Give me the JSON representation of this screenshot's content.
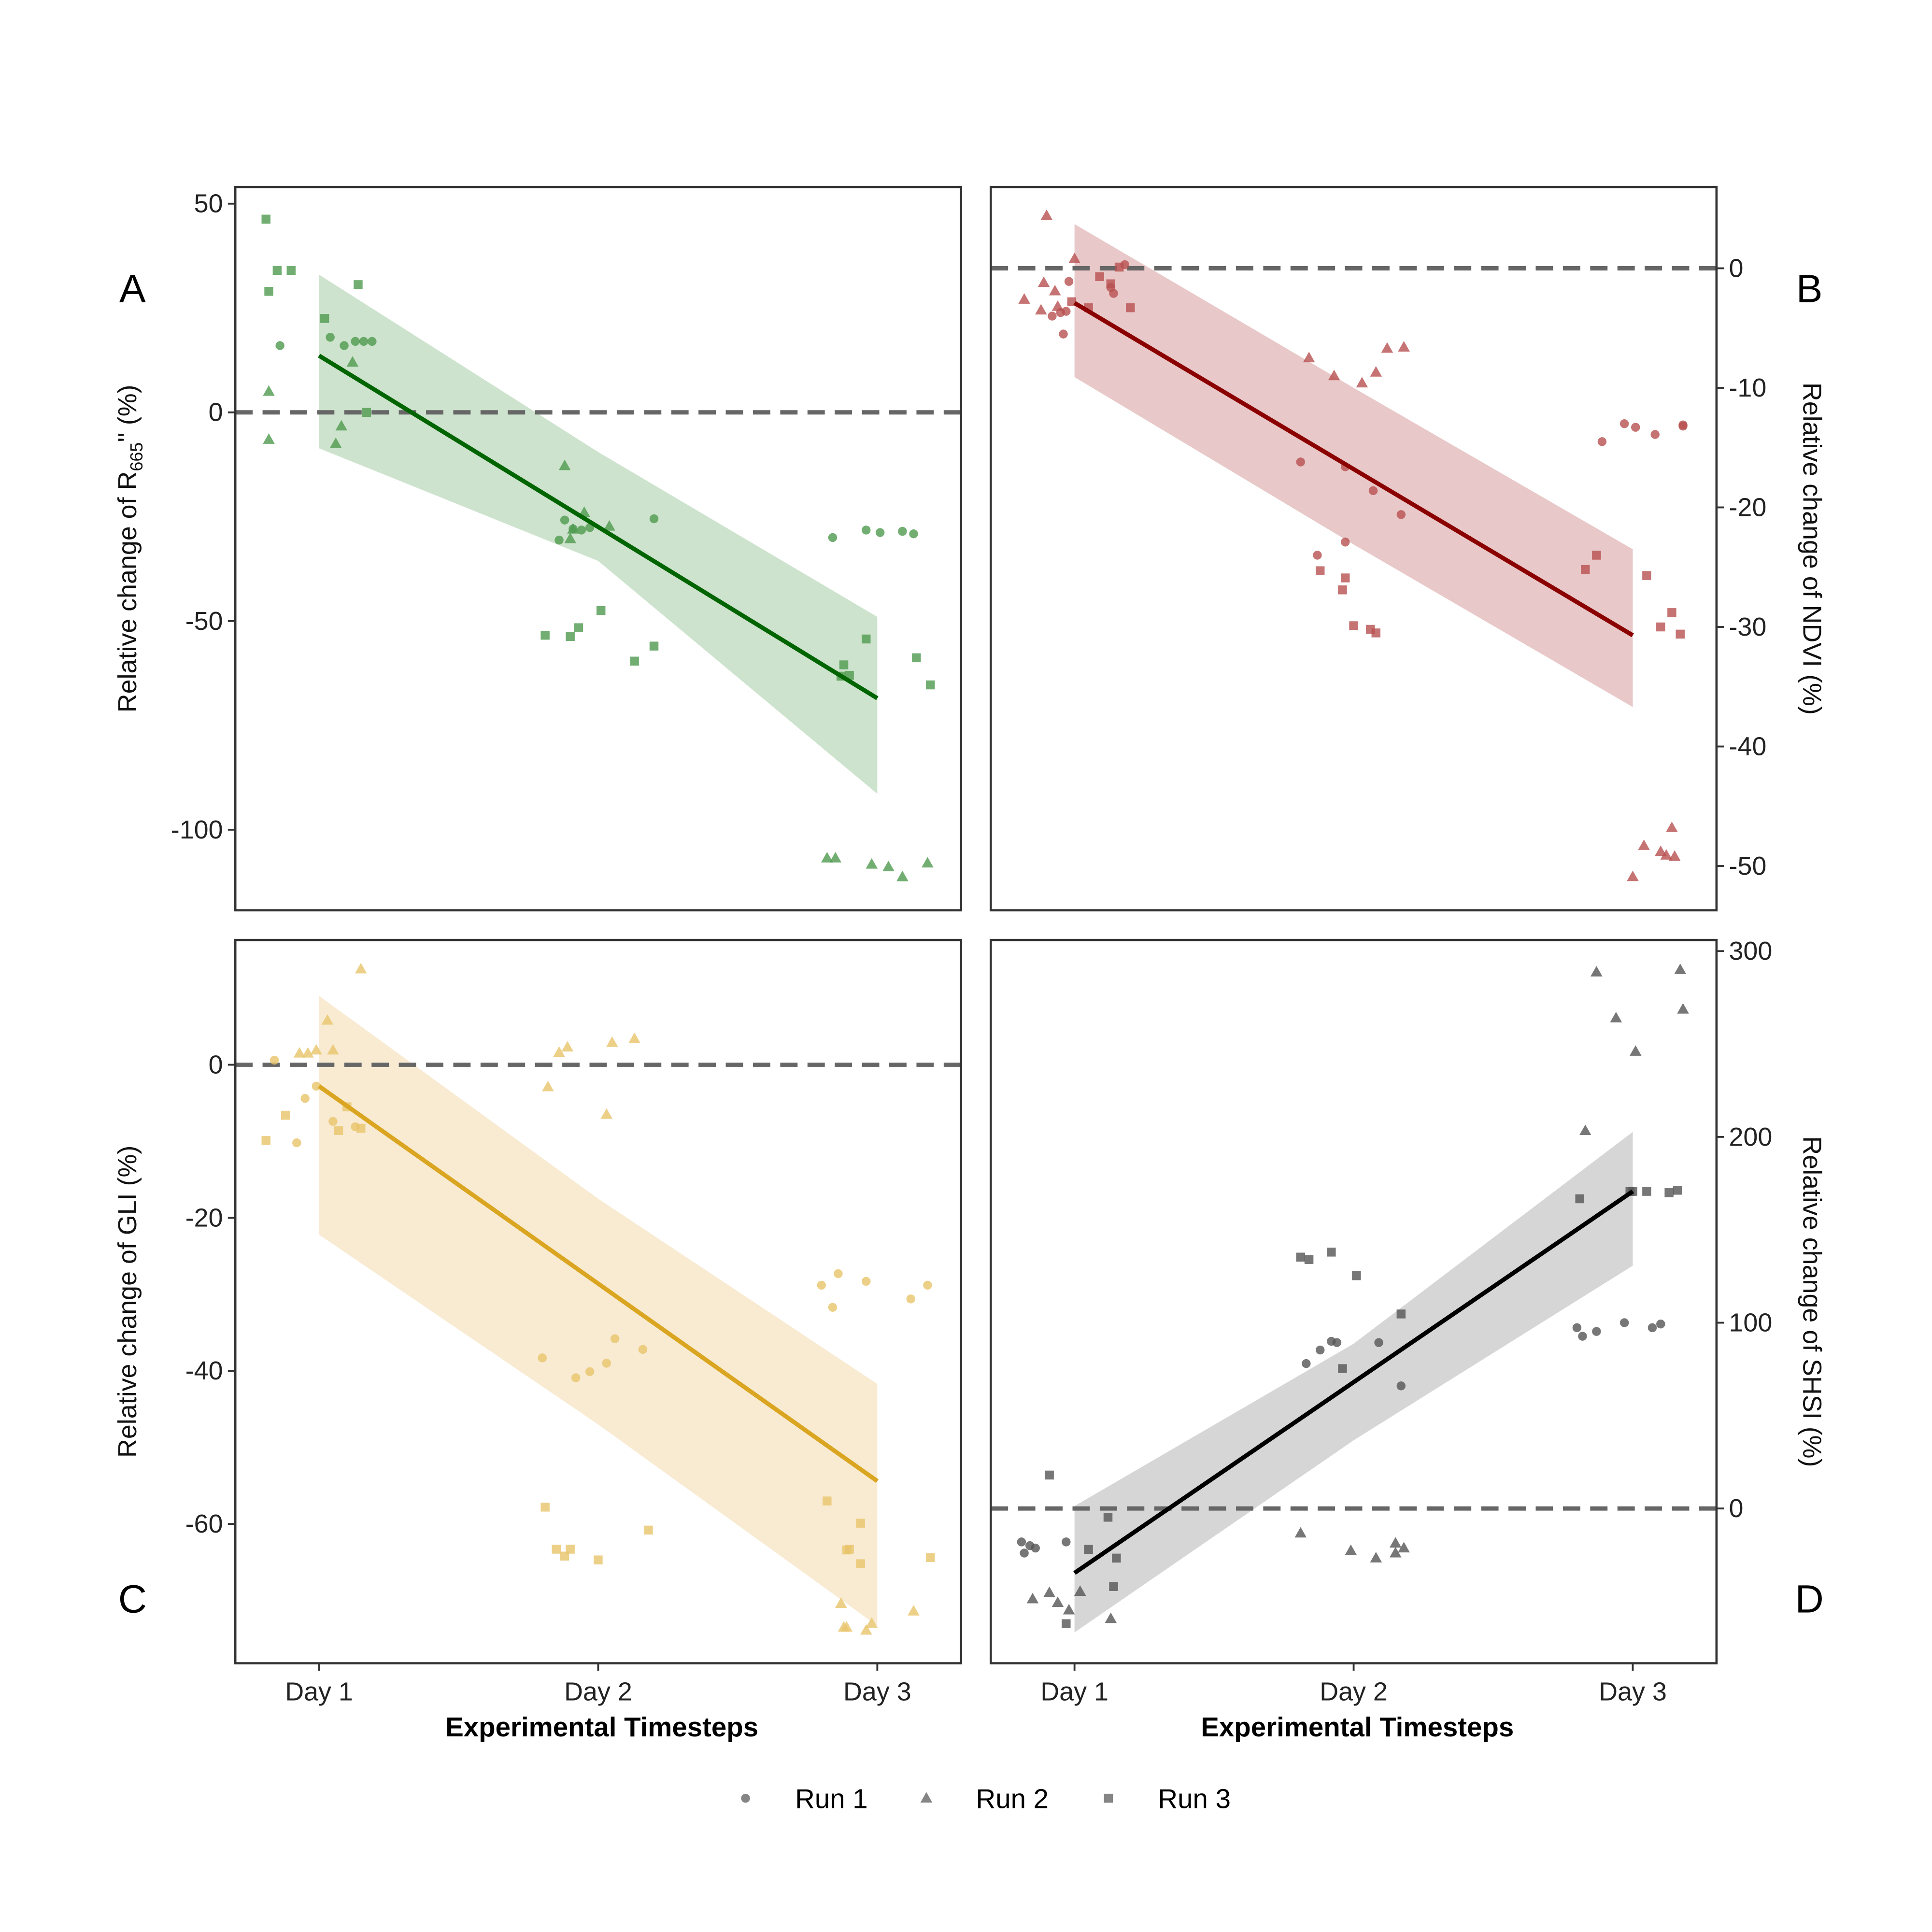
{
  "legend": {
    "color": "#666666",
    "items": [
      {
        "label": "Run 1",
        "shape": "circle"
      },
      {
        "label": "Run 2",
        "shape": "triangle"
      },
      {
        "label": "Run 3",
        "shape": "square"
      }
    ]
  },
  "chart_data": [
    {
      "panel": "A",
      "type": "scatter",
      "ylabel": {
        "prefix": "Relative change of  R",
        "sub": "665",
        "suffix": "'' (%)"
      },
      "xlabel": "",
      "axis_side": "left",
      "categories": [
        "Day 1",
        "Day 2",
        "Day 3"
      ],
      "show_xticks": false,
      "ylim": [
        -119.3,
        54
      ],
      "yticks": [
        50,
        0,
        -50,
        -100
      ],
      "ytick_labels": [
        "50",
        "0",
        "-50",
        "-100"
      ],
      "reference_line": 0,
      "colors": {
        "points": "#4f9a4f",
        "line": "#006400",
        "band": "#cde3cd"
      },
      "fit": {
        "x": [
          1,
          3
        ],
        "y": [
          13.6,
          -68.5
        ]
      },
      "band": {
        "x": [
          1,
          2,
          3
        ],
        "upper": [
          33,
          -9.5,
          -49
        ],
        "lower": [
          -8.6,
          -35.6,
          -91.4
        ]
      },
      "runs": {
        "1": [
          [
            0.86,
            16
          ],
          [
            1.04,
            18
          ],
          [
            1.09,
            16
          ],
          [
            1.13,
            17
          ],
          [
            1.16,
            17
          ],
          [
            1.19,
            17
          ],
          [
            1.86,
            -30.6
          ],
          [
            1.88,
            -25.8
          ],
          [
            1.91,
            -27.9
          ],
          [
            1.94,
            -28.2
          ],
          [
            1.97,
            -27.6
          ],
          [
            2.2,
            -25.5
          ],
          [
            2.84,
            -30
          ],
          [
            2.96,
            -28.2
          ],
          [
            3.01,
            -28.8
          ],
          [
            3.09,
            -28.5
          ],
          [
            3.13,
            -29.1
          ]
        ],
        "2": [
          [
            0.82,
            5
          ],
          [
            0.82,
            -6.5
          ],
          [
            1.06,
            -7.5
          ],
          [
            1.08,
            -3.3
          ],
          [
            1.12,
            12
          ],
          [
            1.88,
            -12.8
          ],
          [
            1.9,
            -30.3
          ],
          [
            1.91,
            -28
          ],
          [
            1.95,
            -24
          ],
          [
            2.04,
            -27.3
          ],
          [
            2.82,
            -106.8
          ],
          [
            2.85,
            -106.8
          ],
          [
            2.98,
            -108.3
          ],
          [
            3.04,
            -108.9
          ],
          [
            3.09,
            -111.3
          ],
          [
            3.18,
            -108
          ]
        ],
        "3": [
          [
            0.81,
            46.3
          ],
          [
            0.82,
            29
          ],
          [
            0.85,
            34
          ],
          [
            0.9,
            34
          ],
          [
            1.02,
            22.5
          ],
          [
            1.14,
            30.6
          ],
          [
            1.17,
            0
          ],
          [
            1.81,
            -53.4
          ],
          [
            1.9,
            -53.7
          ],
          [
            1.93,
            -51.6
          ],
          [
            2.01,
            -47.5
          ],
          [
            2.13,
            -59.6
          ],
          [
            2.2,
            -56
          ],
          [
            2.87,
            -63.2
          ],
          [
            2.88,
            -60.5
          ],
          [
            2.9,
            -63
          ],
          [
            2.96,
            -54.3
          ],
          [
            3.14,
            -58.8
          ],
          [
            3.19,
            -65.3
          ]
        ]
      }
    },
    {
      "panel": "B",
      "type": "scatter",
      "ylabel": {
        "prefix": "Relative change of NDVI  (%)",
        "sub": "",
        "suffix": ""
      },
      "xlabel": "",
      "axis_side": "right",
      "categories": [
        "Day 1",
        "Day 2",
        "Day 3"
      ],
      "show_xticks": false,
      "ylim": [
        -53.7,
        6.8
      ],
      "yticks": [
        0,
        -10,
        -20,
        -30,
        -40,
        -50
      ],
      "ytick_labels": [
        "0",
        "-10",
        "-20",
        "-30",
        "-40",
        "-50"
      ],
      "reference_line": 0,
      "colors": {
        "points": "#b85050",
        "line": "#8b0000",
        "band": "#e8c8c8"
      },
      "fit": {
        "x": [
          1,
          3
        ],
        "y": [
          -2.9,
          -30.7
        ]
      },
      "band": {
        "x": [
          1,
          2,
          3
        ],
        "upper": [
          3.7,
          -10,
          -23.5
        ],
        "lower": [
          -9.1,
          -23.1,
          -36.7
        ]
      },
      "runs": {
        "1": [
          [
            0.92,
            -4
          ],
          [
            0.95,
            -3.7
          ],
          [
            0.97,
            -3.6
          ],
          [
            0.96,
            -5.5
          ],
          [
            0.98,
            -1.1
          ],
          [
            1.13,
            -1.6
          ],
          [
            1.14,
            -2.1
          ],
          [
            1.18,
            0.3
          ],
          [
            1.81,
            -16.2
          ],
          [
            1.87,
            -24
          ],
          [
            1.97,
            -16.6
          ],
          [
            1.97,
            -22.9
          ],
          [
            2.07,
            -18.6
          ],
          [
            2.17,
            -20.6
          ],
          [
            2.89,
            -14.5
          ],
          [
            2.97,
            -13
          ],
          [
            3.01,
            -13.3
          ],
          [
            3.08,
            -13.9
          ],
          [
            3.18,
            -13.1
          ],
          [
            3.18,
            -13.2
          ]
        ],
        "2": [
          [
            0.9,
            4.4
          ],
          [
            0.82,
            -2.6
          ],
          [
            0.88,
            -3.5
          ],
          [
            0.89,
            -1.2
          ],
          [
            0.93,
            -1.9
          ],
          [
            1.0,
            0.8
          ],
          [
            0.94,
            -3.2
          ],
          [
            1.84,
            -7.5
          ],
          [
            1.93,
            -9
          ],
          [
            2.03,
            -9.6
          ],
          [
            2.08,
            -8.7
          ],
          [
            2.12,
            -6.7
          ],
          [
            2.18,
            -6.6
          ],
          [
            3.0,
            -50.9
          ],
          [
            3.04,
            -48.3
          ],
          [
            3.1,
            -48.8
          ],
          [
            3.12,
            -49.1
          ],
          [
            3.14,
            -46.8
          ],
          [
            3.15,
            -49.2
          ]
        ],
        "3": [
          [
            0.99,
            -2.8
          ],
          [
            1.05,
            -3.3
          ],
          [
            1.09,
            -0.7
          ],
          [
            1.13,
            -1.3
          ],
          [
            1.16,
            0.1
          ],
          [
            1.2,
            -3.3
          ],
          [
            1.88,
            -25.3
          ],
          [
            1.97,
            -25.9
          ],
          [
            1.96,
            -26.9
          ],
          [
            2.0,
            -29.9
          ],
          [
            2.06,
            -30.2
          ],
          [
            2.08,
            -30.5
          ],
          [
            2.83,
            -25.2
          ],
          [
            2.87,
            -24
          ],
          [
            3.05,
            -25.7
          ],
          [
            3.1,
            -30
          ],
          [
            3.14,
            -28.8
          ],
          [
            3.17,
            -30.6
          ]
        ]
      }
    },
    {
      "panel": "C",
      "type": "scatter",
      "ylabel": {
        "prefix": "Relative change of GLI (%)",
        "sub": "",
        "suffix": ""
      },
      "xlabel": "Experimental Timesteps",
      "axis_side": "left",
      "categories": [
        "Day 1",
        "Day 2",
        "Day 3"
      ],
      "show_xticks": true,
      "ylim": [
        -78.2,
        16.3
      ],
      "yticks": [
        0,
        -20,
        -40,
        -60
      ],
      "ytick_labels": [
        "0",
        "-20",
        "-40",
        "-60"
      ],
      "reference_line": 0,
      "colors": {
        "points": "#e8c46a",
        "line": "#daa520",
        "band": "#f8ebd2"
      },
      "fit": {
        "x": [
          1,
          3
        ],
        "y": [
          -2.8,
          -54.4
        ]
      },
      "band": {
        "x": [
          1,
          2,
          3
        ],
        "upper": [
          9,
          -17.5,
          -41.7
        ],
        "lower": [
          -22.2,
          -47,
          -73.3
        ]
      },
      "runs": {
        "1": [
          [
            0.84,
            0.6
          ],
          [
            0.95,
            -4.4
          ],
          [
            0.92,
            -10.2
          ],
          [
            0.99,
            -2.8
          ],
          [
            1.05,
            -7.4
          ],
          [
            1.13,
            -8.1
          ],
          [
            1.8,
            -38.3
          ],
          [
            1.92,
            -40.9
          ],
          [
            1.97,
            -40.1
          ],
          [
            2.03,
            -39
          ],
          [
            2.06,
            -35.8
          ],
          [
            2.16,
            -37.2
          ],
          [
            2.8,
            -28.8
          ],
          [
            2.84,
            -31.7
          ],
          [
            2.86,
            -27.3
          ],
          [
            2.96,
            -28.3
          ],
          [
            3.12,
            -30.6
          ],
          [
            3.18,
            -28.8
          ]
        ],
        "2": [
          [
            0.93,
            1.5
          ],
          [
            0.96,
            1.5
          ],
          [
            0.99,
            1.9
          ],
          [
            1.03,
            5.8
          ],
          [
            1.05,
            1.9
          ],
          [
            1.15,
            12.5
          ],
          [
            1.82,
            -2.9
          ],
          [
            1.86,
            1.6
          ],
          [
            1.89,
            2.3
          ],
          [
            2.05,
            2.9
          ],
          [
            2.03,
            -6.5
          ],
          [
            2.13,
            3.4
          ],
          [
            2.87,
            -70.4
          ],
          [
            2.88,
            -73.5
          ],
          [
            2.89,
            -73.5
          ],
          [
            2.96,
            -73.9
          ],
          [
            2.98,
            -73
          ],
          [
            3.13,
            -71.4
          ]
        ],
        "3": [
          [
            0.81,
            -9.9
          ],
          [
            0.88,
            -6.6
          ],
          [
            1.07,
            -8.6
          ],
          [
            1.1,
            -5.5
          ],
          [
            1.15,
            -8.3
          ],
          [
            1.81,
            -57.8
          ],
          [
            1.85,
            -63.3
          ],
          [
            1.88,
            -64.2
          ],
          [
            1.9,
            -63.3
          ],
          [
            2.0,
            -64.7
          ],
          [
            2.18,
            -60.8
          ],
          [
            2.82,
            -57
          ],
          [
            2.89,
            -63.4
          ],
          [
            2.9,
            -63.3
          ],
          [
            2.94,
            -59.9
          ],
          [
            2.94,
            -65.2
          ],
          [
            3.19,
            -64.4
          ]
        ]
      }
    },
    {
      "panel": "D",
      "type": "scatter",
      "ylabel": {
        "prefix": "Relative change of SHSI (%)",
        "sub": "",
        "suffix": ""
      },
      "xlabel": "Experimental Timesteps",
      "axis_side": "right",
      "categories": [
        "Day 1",
        "Day 2",
        "Day 3"
      ],
      "show_xticks": true,
      "ylim": [
        -83.3,
        306
      ],
      "yticks": [
        0,
        100,
        200,
        300
      ],
      "ytick_labels": [
        "0",
        "100",
        "200",
        "300"
      ],
      "reference_line": 0,
      "colors": {
        "points": "#555555",
        "line": "#000000",
        "band": "#d6d6d6"
      },
      "fit": {
        "x": [
          1,
          3
        ],
        "y": [
          -34.7,
          170.7
        ]
      },
      "band": {
        "x": [
          1,
          2,
          3
        ],
        "upper": [
          1.3,
          88.7,
          202.7
        ],
        "lower": [
          -66.7,
          36.7,
          130.7
        ]
      },
      "runs": {
        "1": [
          [
            0.81,
            -18
          ],
          [
            0.82,
            -24
          ],
          [
            0.84,
            -20
          ],
          [
            0.86,
            -21.3
          ],
          [
            0.97,
            -18
          ],
          [
            1.83,
            78
          ],
          [
            1.88,
            85.3
          ],
          [
            1.92,
            90
          ],
          [
            1.94,
            89.3
          ],
          [
            2.09,
            89.3
          ],
          [
            2.17,
            66
          ],
          [
            2.8,
            97.3
          ],
          [
            2.82,
            92.7
          ],
          [
            2.87,
            95.3
          ],
          [
            2.97,
            100
          ],
          [
            3.07,
            97.3
          ],
          [
            3.1,
            99.3
          ]
        ],
        "2": [
          [
            0.85,
            -48.7
          ],
          [
            0.91,
            -45.3
          ],
          [
            0.94,
            -50.7
          ],
          [
            0.98,
            -54.7
          ],
          [
            1.02,
            -44.7
          ],
          [
            1.13,
            -59.3
          ],
          [
            1.81,
            -13.3
          ],
          [
            1.99,
            -22.7
          ],
          [
            2.08,
            -26.7
          ],
          [
            2.15,
            -18.7
          ],
          [
            2.15,
            -24
          ],
          [
            2.18,
            -21.3
          ],
          [
            2.83,
            203.3
          ],
          [
            2.87,
            288.7
          ],
          [
            2.94,
            264
          ],
          [
            3.01,
            246
          ],
          [
            3.17,
            290
          ],
          [
            3.18,
            268.7
          ]
        ],
        "3": [
          [
            0.91,
            18
          ],
          [
            0.97,
            -62
          ],
          [
            1.05,
            -22
          ],
          [
            1.12,
            -4.7
          ],
          [
            1.14,
            -42
          ],
          [
            1.15,
            -26.7
          ],
          [
            1.81,
            135.3
          ],
          [
            1.84,
            134
          ],
          [
            1.92,
            138
          ],
          [
            1.96,
            75.3
          ],
          [
            2.01,
            125.3
          ],
          [
            2.17,
            104.7
          ],
          [
            2.81,
            166.7
          ],
          [
            2.99,
            170.7
          ],
          [
            3.0,
            170.7
          ],
          [
            3.05,
            170.7
          ],
          [
            3.13,
            170
          ],
          [
            3.16,
            171.3
          ]
        ]
      }
    }
  ]
}
